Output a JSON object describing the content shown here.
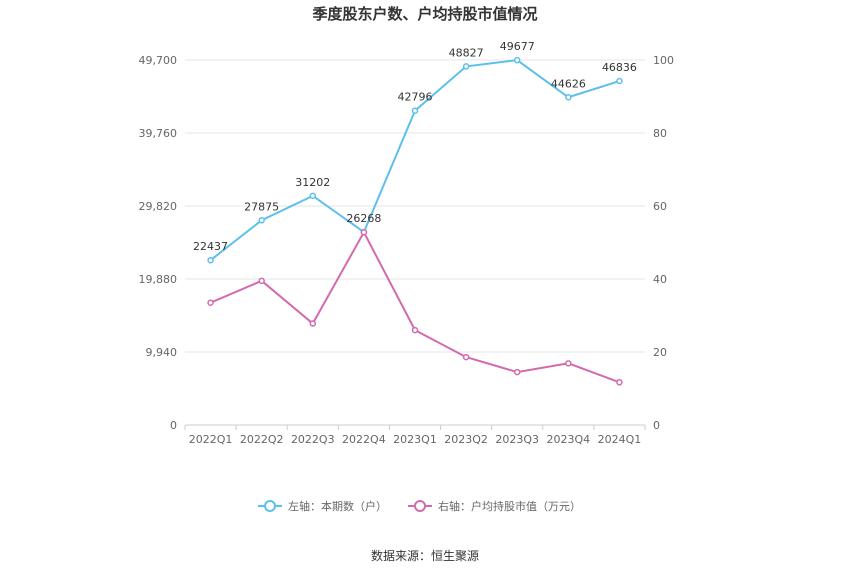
{
  "chart_data": {
    "type": "line",
    "title": "季度股东户数、户均持股市值情况",
    "categories": [
      "2022Q1",
      "2022Q2",
      "2022Q3",
      "2022Q4",
      "2023Q1",
      "2023Q2",
      "2023Q3",
      "2023Q4",
      "2024Q1"
    ],
    "left_axis": {
      "min": 0,
      "max": 49700,
      "ticks": [
        0,
        9940,
        19880,
        29820,
        39760,
        49700
      ],
      "tick_labels": [
        "0",
        "9,940",
        "19,880",
        "29,820",
        "39,760",
        "49,700"
      ]
    },
    "right_axis": {
      "min": 0,
      "max": 100,
      "ticks": [
        0,
        20,
        40,
        60,
        80,
        100
      ],
      "tick_labels": [
        "0",
        "20",
        "40",
        "60",
        "80",
        "100"
      ]
    },
    "series": [
      {
        "name": "左轴：本期数（户）",
        "axis": "left",
        "color": "#5bc0eb",
        "values": [
          22437,
          27875,
          31202,
          26268,
          42796,
          48827,
          49677,
          44626,
          46836
        ],
        "labels": [
          "22437",
          "27875",
          "31202",
          "26268",
          "42796",
          "48827",
          "49677",
          "44626",
          "46836"
        ]
      },
      {
        "name": "右轴：户均持股市值（万元）",
        "axis": "right",
        "color": "#d46aae",
        "values": [
          33.5,
          39.5,
          27.8,
          52.8,
          26.0,
          18.6,
          14.5,
          16.9,
          11.7
        ]
      }
    ],
    "grid": true,
    "legend_position": "bottom"
  },
  "source_text": "数据来源：恒生聚源"
}
